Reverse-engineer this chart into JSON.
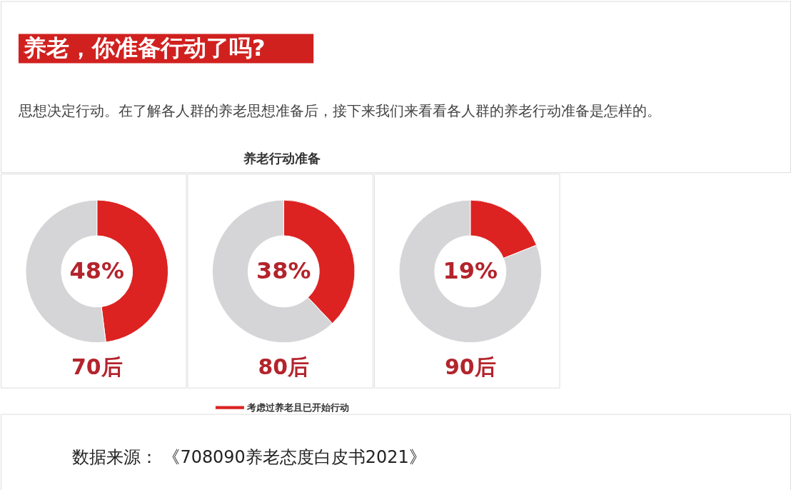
{
  "chart_data": [
    {
      "type": "other",
      "title": "养老，你准备行动了吗?",
      "subtitle": "思想决定行动。在了解各人群的养老思想准备后，接下来我们来看看各人群的养老行动准备是怎样的。",
      "annotations": [
        "养老行动准备"
      ]
    },
    {
      "type": "donut",
      "title": "70后",
      "categories": [
        null,
        null
      ],
      "values": [
        48,
        52
      ],
      "colors": [
        "#dc2322",
        "#d5d5d7"
      ],
      "value_labels": [
        "48%",
        null
      ]
    },
    {
      "type": "donut",
      "title": "80后",
      "categories": [
        "考虑过养老且已开始行动",
        null
      ],
      "values": [
        38,
        62
      ],
      "colors": [
        "#dc2322",
        "#d5d5d7"
      ],
      "value_labels": [
        "38%",
        null
      ],
      "legend": "bottom"
    },
    {
      "type": "donut",
      "title": "90后",
      "categories": [
        null,
        null
      ],
      "values": [
        19,
        81
      ],
      "colors": [
        "#dc2322",
        "#d5d5d7"
      ],
      "value_labels": [
        "19%",
        null
      ]
    },
    {
      "type": "other",
      "annotations": [
        "数据来源：  《708090养老态度白皮书2021》"
      ]
    }
  ]
}
